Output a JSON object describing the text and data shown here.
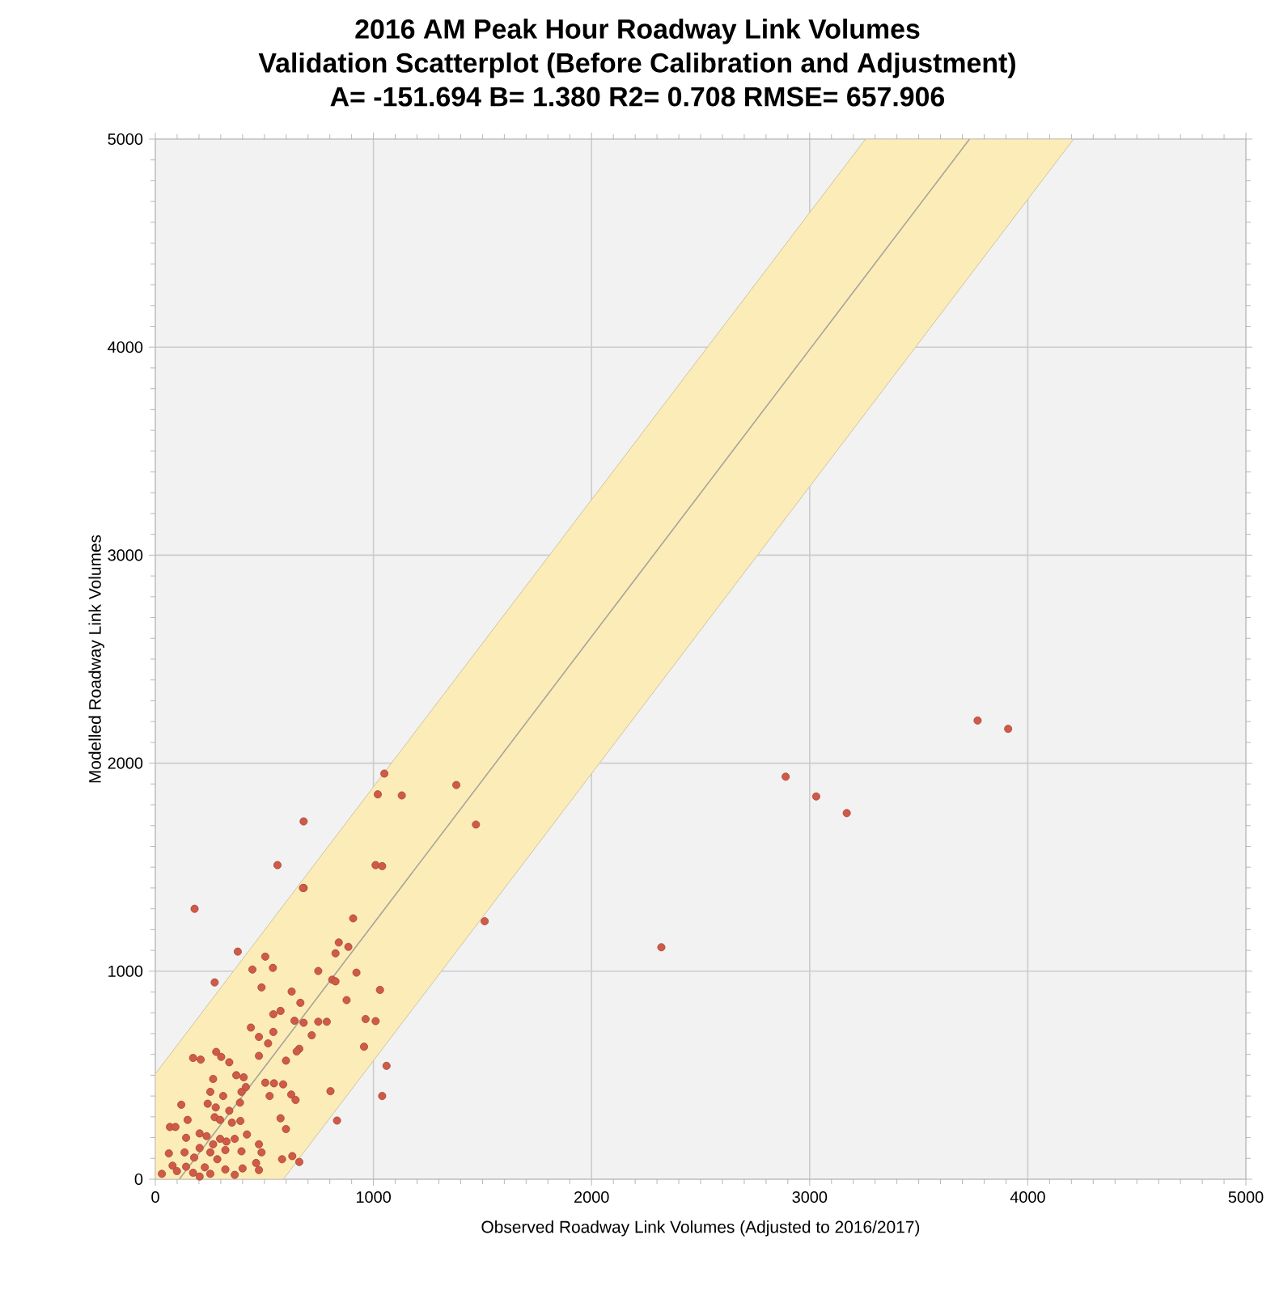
{
  "chart_data": {
    "type": "scatter",
    "title": "2016 AM Peak Hour Roadway Link Volumes",
    "subtitle": "Validation Scatterplot (Before Calibration and Adjustment)",
    "annotations": [
      "A= -151.694   B= 1.380   R2= 0.708   RMSE= 657.906"
    ],
    "xlabel": "Observed Roadway Link Volumes (Adjusted to 2016/2017)",
    "ylabel": "Modelled Roadway Link Volumes",
    "xlim": [
      0,
      5000
    ],
    "ylim": [
      0,
      5000
    ],
    "xticks": [
      0,
      1000,
      2000,
      3000,
      4000,
      5000
    ],
    "yticks": [
      0,
      1000,
      2000,
      3000,
      4000,
      5000
    ],
    "grid": true,
    "series": [
      {
        "type": "line",
        "color": "#a8a49a",
        "marker": "none",
        "x": [
          0,
          110,
          587,
          3256,
          3733,
          4210
        ],
        "values": [
          null,
          0,
          658,
          4342,
          5000,
          null
        ],
        "lower": [
          0,
          0,
          0,
          3683,
          4342,
          5000
        ],
        "upper": [
          506,
          658,
          1316,
          5000,
          5000,
          5000
        ]
      },
      {
        "color": "#d05a48",
        "marker": "circle",
        "x": [
          2320,
          2890,
          3030,
          3170,
          3770,
          3910,
          1510,
          1380,
          1470,
          1130,
          1050,
          1020,
          1010,
          1040,
          560,
          680,
          680,
          180,
          1060,
          1040,
          1030,
          1010,
          677,
          907,
          841,
          885,
          826,
          378,
          504,
          445,
          539,
          747,
          922,
          811,
          826,
          272,
          487,
          625,
          665,
          877,
          574,
          541,
          964,
          638,
          680,
          747,
          786,
          438,
          541,
          717,
          475,
          517,
          957,
          660,
          648,
          475,
          599,
          279,
          302,
          173,
          208,
          339,
          371,
          405,
          265,
          504,
          544,
          586,
          415,
          252,
          395,
          803,
          524,
          623,
          311,
          643,
          388,
          240,
          277,
          339,
          119,
          390,
          574,
          833,
          272,
          297,
          351,
          148,
          67,
          92,
          599,
          420,
          203,
          235,
          141,
          297,
          364,
          326,
          265,
          475,
          134,
          203,
          252,
          321,
          395,
          487,
          62,
          628,
          178,
          284,
          581,
          462,
          79,
          141,
          227,
          321,
          660,
          400,
          99,
          173,
          252,
          475,
          30,
          203,
          364
        ],
        "values": [
          1115,
          1935,
          1840,
          1760,
          2205,
          2165,
          1240,
          1895,
          1705,
          1845,
          1950,
          1850,
          1510,
          1505,
          1510,
          1720,
          1400,
          1300,
          545,
          400,
          910,
          760,
          1400,
          1254,
          1138,
          1117,
          1086,
          1094,
          1070,
          1008,
          1016,
          1001,
          993,
          959,
          951,
          946,
          922,
          902,
          848,
          861,
          809,
          793,
          770,
          762,
          752,
          757,
          757,
          729,
          708,
          692,
          684,
          653,
          637,
          627,
          614,
          593,
          570,
          612,
          588,
          583,
          575,
          562,
          500,
          490,
          482,
          464,
          461,
          456,
          443,
          420,
          420,
          423,
          400,
          407,
          400,
          381,
          368,
          363,
          345,
          329,
          358,
          280,
          293,
          282,
          298,
          285,
          272,
          285,
          251,
          251,
          241,
          215,
          220,
          207,
          199,
          194,
          194,
          181,
          168,
          168,
          129,
          150,
          129,
          140,
          134,
          129,
          124,
          111,
          104,
          96,
          96,
          78,
          65,
          60,
          57,
          47,
          83,
          52,
          39,
          31,
          26,
          44,
          26,
          13,
          21
        ]
      }
    ]
  }
}
